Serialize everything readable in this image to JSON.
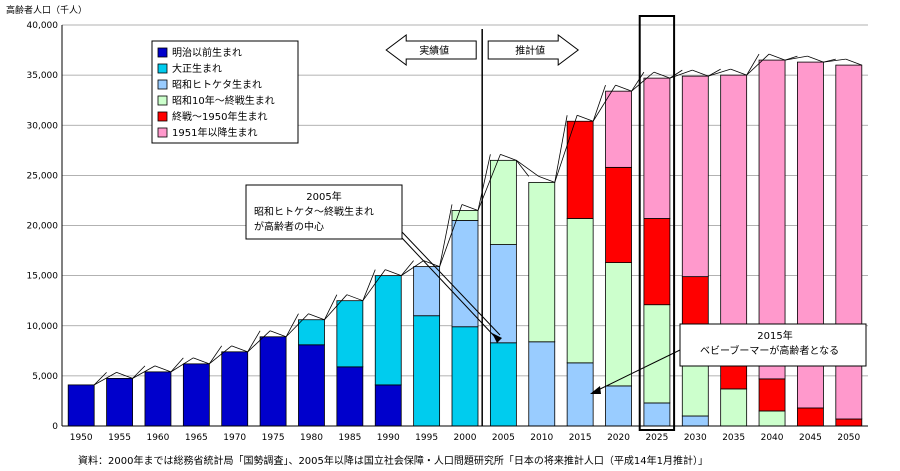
{
  "chart_data": {
    "type": "bar",
    "stacked": true,
    "ylabel": "高齢者人口（千人）",
    "ylim": [
      0,
      40000
    ],
    "yticks": [
      0,
      5000,
      10000,
      15000,
      20000,
      25000,
      30000,
      35000,
      40000
    ],
    "ytick_labels": [
      "0",
      "5,000",
      "10,000",
      "15,000",
      "20,000",
      "25,000",
      "30,000",
      "35,000",
      "40,000"
    ],
    "grid": true,
    "categories": [
      "1950",
      "1955",
      "1960",
      "1965",
      "1970",
      "1975",
      "1980",
      "1985",
      "1990",
      "1995",
      "2000",
      "2005",
      "2010",
      "2015",
      "2020",
      "2025",
      "2030",
      "2035",
      "2040",
      "2045",
      "2050"
    ],
    "series": [
      {
        "name": "明治以前生まれ",
        "color": "#0000CC",
        "values": [
          4100,
          4750,
          5400,
          6200,
          7400,
          8900,
          8100,
          5900,
          4100,
          0,
          0,
          0,
          0,
          0,
          0,
          0,
          0,
          0,
          0,
          0,
          0
        ]
      },
      {
        "name": "大正生まれ",
        "color": "#00CCEE",
        "values": [
          0,
          0,
          0,
          0,
          0,
          0,
          2500,
          6600,
          10900,
          11000,
          9900,
          8300,
          0,
          0,
          0,
          0,
          0,
          0,
          0,
          0,
          0
        ]
      },
      {
        "name": "昭和ヒトケタ生まれ",
        "color": "#99CCFF",
        "values": [
          0,
          0,
          0,
          0,
          0,
          0,
          0,
          0,
          0,
          4900,
          10600,
          9800,
          8400,
          6300,
          4000,
          2300,
          1000,
          0,
          0,
          0,
          0
        ]
      },
      {
        "name": "昭和10年～終戦生まれ",
        "color": "#CCFFCC",
        "values": [
          0,
          0,
          0,
          0,
          0,
          0,
          0,
          0,
          0,
          0,
          1000,
          8400,
          15900,
          14400,
          12300,
          9800,
          6600,
          3700,
          1500,
          0,
          0
        ]
      },
      {
        "name": "終戦～1950年生まれ",
        "color": "#FF0000",
        "values": [
          0,
          0,
          0,
          0,
          0,
          0,
          0,
          0,
          0,
          0,
          0,
          0,
          0,
          9700,
          9500,
          8600,
          7300,
          5300,
          3200,
          1800,
          700
        ]
      },
      {
        "name": "1951年以降生まれ",
        "color": "#FF99CC",
        "values": [
          0,
          0,
          0,
          0,
          0,
          0,
          0,
          0,
          0,
          0,
          0,
          0,
          0,
          0,
          7600,
          14000,
          20000,
          26000,
          31800,
          34500,
          35300
        ]
      }
    ],
    "legend_position": "top-left",
    "annotations": [
      {
        "text": "実績値",
        "direction": "left"
      },
      {
        "text": "推計値",
        "direction": "right"
      },
      {
        "lines": [
          "2005年",
          "昭和ヒトケタ～終戦生まれ",
          "が高齢者の中心"
        ]
      },
      {
        "lines": [
          "2015年",
          "ベビーブーマーが高齢者となる"
        ]
      }
    ],
    "highlight_category": "2025",
    "source": "資料：2000年までは総務省統計局「国勢調査」、2005年以降は国立社会保障・人口問題研究所「日本の将来推計人口（平成14年1月推計）」"
  }
}
